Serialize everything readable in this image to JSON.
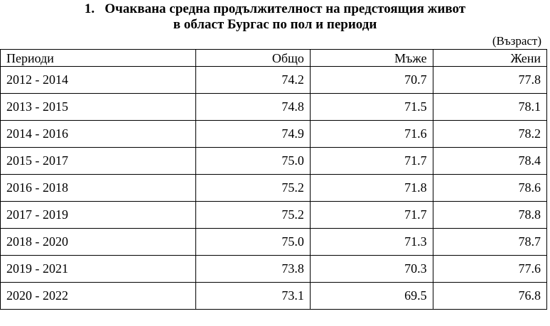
{
  "title": {
    "number": "1.",
    "line1": "Очаквана средна продължителност на предстоящия живот",
    "line2": "в област Бургас по пол и периоди"
  },
  "unit": "(Възраст)",
  "table": {
    "headers": {
      "period": "Периоди",
      "total": "Общо",
      "men": "Мъже",
      "women": "Жени"
    },
    "rows": [
      {
        "period": "2012 - 2014",
        "total": "74.2",
        "men": "70.7",
        "women": "77.8"
      },
      {
        "period": "2013 - 2015",
        "total": "74.8",
        "men": "71.5",
        "women": "78.1"
      },
      {
        "period": "2014 - 2016",
        "total": "74.9",
        "men": "71.6",
        "women": "78.2"
      },
      {
        "period": "2015 - 2017",
        "total": "75.0",
        "men": "71.7",
        "women": "78.4"
      },
      {
        "period": "2016 - 2018",
        "total": "75.2",
        "men": "71.8",
        "women": "78.6"
      },
      {
        "period": "2017 - 2019",
        "total": "75.2",
        "men": "71.7",
        "women": "78.8"
      },
      {
        "period": "2018 - 2020",
        "total": "75.0",
        "men": "71.3",
        "women": "78.7"
      },
      {
        "period": "2019 - 2021",
        "total": "73.8",
        "men": "70.3",
        "women": "77.6"
      },
      {
        "period": "2020 - 2022",
        "total": "73.1",
        "men": "69.5",
        "women": "76.8"
      }
    ]
  }
}
